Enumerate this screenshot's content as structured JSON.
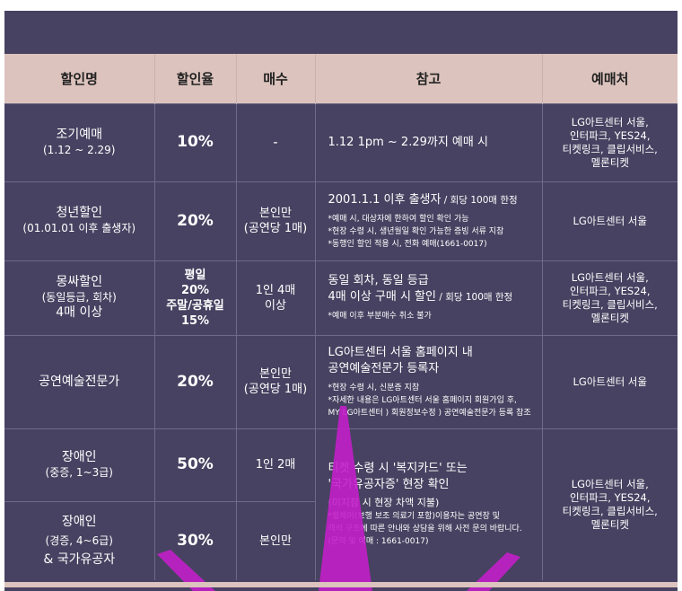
{
  "headers": [
    "할인명",
    "할인율",
    "매수",
    "참고",
    "예매처"
  ],
  "rows": [
    {
      "name": [
        "조기예매",
        "(1.12 ~ 2.29)"
      ],
      "rate": "10%",
      "qty": "-",
      "note_main": [
        "1.12 1pm ~ 2.29까지 예매 시"
      ],
      "note_sub": [],
      "vendor": [
        "LG아트센터 서울,",
        "인터파크, YES24,",
        "티켓링크, 클립서비스,",
        "멜론티켓"
      ]
    },
    {
      "name": [
        "청년할인",
        "(01.01.01 이후 출생자)"
      ],
      "rate": "20%",
      "qty": [
        "본인만",
        "(공연당 1매)"
      ],
      "note_main": [
        "2001.1.1 이후 출생자",
        " / 회당 100매 한정"
      ],
      "note_sub": [
        "*예매 시, 대상자에 한하여 할인 확인 가능",
        "*현장 수령 시, 생년월일 확인 가능한 증빙 서류 지참",
        "*동행인 할인 적용 시, 전화 예매(1661-0017)"
      ],
      "vendor": [
        "LG아트센터 서울"
      ]
    },
    {
      "name": [
        "몽싸할인",
        "(동일등급, 회차)",
        "4매 이상"
      ],
      "rate": [
        "평일",
        "20%",
        "주말/공휴일",
        "15%"
      ],
      "qty": [
        "1인 4매",
        "이상"
      ],
      "note_main": [
        "동일 회차, 동일 등급",
        "4매 이상 구매 시 할인",
        " / 회당 100매 한정"
      ],
      "note_sub": [
        "*예매 이후 부분매수 취소 불가"
      ],
      "vendor": [
        "LG아트센터 서울,",
        "인터파크, YES24,",
        "티켓링크, 클립서비스,",
        "멜론티켓"
      ]
    },
    {
      "name": [
        "공연예술전문가"
      ],
      "rate": "20%",
      "qty": [
        "본인만",
        "(공연당 1매)"
      ],
      "note_main": [
        "LG아트센터 서울 홈페이지 내",
        "공연예술전문가 등록자"
      ],
      "note_sub": [
        "*현장 수령 시, 신분증 지참",
        "*자세한 내용은 LG아트센터 서울 홈페이지 회원가입 후,",
        "   MY LG아트센터 ) 회원정보수정 ) 공연예술전문가 등록 참조"
      ],
      "vendor": [
        "LG아트센터 서울"
      ]
    },
    {
      "name": [
        "장애인",
        "(중증, 1~3급)"
      ],
      "rate": "50%",
      "qty": "1인 2매",
      "note_main": [
        "티켓 수령 시 '복지카드' 또는",
        "'국가유공자증' 현장 확인"
      ],
      "note_mid": "(미지참 시 현장 차액 지불)",
      "note_sub": [
        "*휠체어(보행 보조 의료기 포함)이용자는 공연장 및",
        "  객석 구조에 따른 안내와 상담을 위해 사전 문의 바랍니다.",
        "  (문의 및 예매 : 1661-0017)"
      ],
      "vendor": [
        "LG아트센터 서울,",
        "인터파크, YES24,",
        "티켓링크, 클립서비스,",
        "멜론티켓"
      ]
    },
    {
      "name": [
        "장애인",
        "(경증, 4~6급)",
        "& 국가유공자"
      ],
      "rate": "30%",
      "qty": "본인만"
    }
  ],
  "colors": {
    "panel": "#474261",
    "header_bg": "#dcc3bd",
    "spotlight": "#c21fc9"
  }
}
